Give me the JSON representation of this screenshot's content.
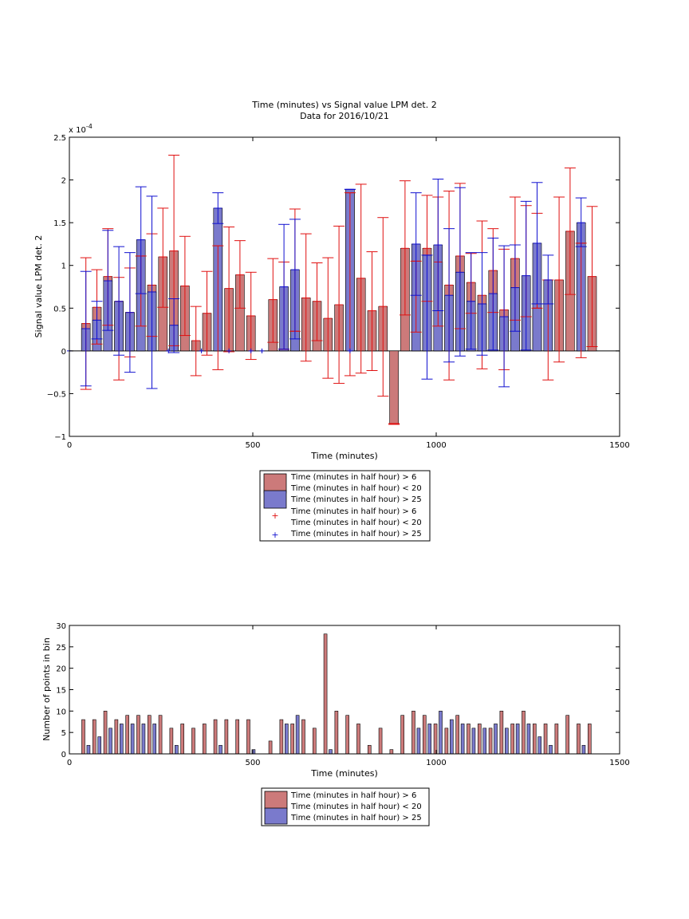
{
  "colors": {
    "red_bar": "#CC7A7A",
    "blue_bar": "#7A7ACC",
    "red_err": "#E01010",
    "blue_err": "#1010D0",
    "axis": "#000000"
  },
  "chart_data": [
    {
      "type": "bar",
      "title": "Time (minutes) vs Signal value LPM det. 2",
      "subtitle": "Data for 2016/10/21",
      "xlabel": "Time (minutes)",
      "ylabel": "Signal value LPM det. 2",
      "exponent_label": "x 10",
      "exponent_power": "-4",
      "xlim": [
        0,
        1500
      ],
      "ylim": [
        -1,
        2.5
      ],
      "xticks": [
        "0",
        "500",
        "1000",
        "1500"
      ],
      "yticks": [
        "−1",
        "−0.5",
        "0",
        "0.5",
        "1",
        "1.5",
        "2",
        "2.5"
      ],
      "legend_position": "below",
      "legend": [
        "Time (minutes in half hour) > 6",
        "Time (minutes in half hour) < 20",
        "Time (minutes in half hour) > 25",
        "Time (minutes in half hour) > 6",
        "Time (minutes in half hour) < 20",
        "Time (minutes in half hour) > 25"
      ],
      "series": [
        {
          "legend": "Time (minutes in half hour) > 6 / Time (minutes in half hour) < 20",
          "color": "red",
          "points": [
            {
              "x": 45,
              "y": 0.32,
              "lo": -0.45,
              "hi": 1.09
            },
            {
              "x": 75,
              "y": 0.51,
              "lo": 0.08,
              "hi": 0.95
            },
            {
              "x": 105,
              "y": 0.87,
              "lo": 0.3,
              "hi": 1.43
            },
            {
              "x": 135,
              "y": 0.58,
              "lo": -0.34,
              "hi": 0.86
            },
            {
              "x": 165,
              "y": 0.45,
              "lo": -0.07,
              "hi": 0.97
            },
            {
              "x": 195,
              "y": 1.11,
              "lo": 0.29,
              "hi": 1.11
            },
            {
              "x": 225,
              "y": 0.77,
              "lo": 0.17,
              "hi": 1.37
            },
            {
              "x": 255,
              "y": 1.1,
              "lo": 0.51,
              "hi": 1.67
            },
            {
              "x": 285,
              "y": 1.17,
              "lo": 0.06,
              "hi": 2.29
            },
            {
              "x": 315,
              "y": 0.76,
              "lo": 0.18,
              "hi": 1.34
            },
            {
              "x": 345,
              "y": 0.12,
              "lo": -0.29,
              "hi": 0.52
            },
            {
              "x": 375,
              "y": 0.44,
              "lo": -0.05,
              "hi": 0.93
            },
            {
              "x": 405,
              "y": 1.23,
              "lo": -0.22,
              "hi": 1.23
            },
            {
              "x": 435,
              "y": 0.73,
              "lo": -0.01,
              "hi": 1.45
            },
            {
              "x": 465,
              "y": 0.89,
              "lo": 0.5,
              "hi": 1.29
            },
            {
              "x": 495,
              "y": 0.41,
              "lo": -0.1,
              "hi": 0.92
            },
            {
              "x": 555,
              "y": 0.6,
              "lo": 0.1,
              "hi": 1.08
            },
            {
              "x": 585,
              "y": 0.02,
              "lo": 0.02,
              "hi": 1.04
            },
            {
              "x": 615,
              "y": 0.23,
              "lo": 0.23,
              "hi": 1.66
            },
            {
              "x": 645,
              "y": 0.62,
              "lo": -0.12,
              "hi": 1.37
            },
            {
              "x": 675,
              "y": 0.58,
              "lo": 0.12,
              "hi": 1.03
            },
            {
              "x": 705,
              "y": 0.38,
              "lo": -0.32,
              "hi": 1.09
            },
            {
              "x": 735,
              "y": 0.54,
              "lo": -0.38,
              "hi": 1.46
            },
            {
              "x": 765,
              "y": 1.85,
              "lo": -0.29,
              "hi": 1.85
            },
            {
              "x": 795,
              "y": 0.85,
              "lo": -0.26,
              "hi": 1.95
            },
            {
              "x": 825,
              "y": 0.47,
              "lo": -0.23,
              "hi": 1.16
            },
            {
              "x": 855,
              "y": 0.52,
              "lo": -0.53,
              "hi": 1.56
            },
            {
              "x": 885,
              "y": -0.85,
              "lo": -0.86,
              "hi": -0.85
            },
            {
              "x": 915,
              "y": 1.2,
              "lo": 0.42,
              "hi": 1.99
            },
            {
              "x": 945,
              "y": 1.05,
              "lo": 0.22,
              "hi": 1.05
            },
            {
              "x": 975,
              "y": 1.2,
              "lo": 0.58,
              "hi": 1.82
            },
            {
              "x": 1005,
              "y": 1.04,
              "lo": 0.29,
              "hi": 1.8
            },
            {
              "x": 1035,
              "y": 0.77,
              "lo": -0.34,
              "hi": 1.87
            },
            {
              "x": 1065,
              "y": 1.11,
              "lo": 0.26,
              "hi": 1.96
            },
            {
              "x": 1095,
              "y": 0.8,
              "lo": 0.44,
              "hi": 1.14
            },
            {
              "x": 1125,
              "y": 0.65,
              "lo": -0.21,
              "hi": 1.52
            },
            {
              "x": 1155,
              "y": 0.94,
              "lo": 0.45,
              "hi": 1.43
            },
            {
              "x": 1185,
              "y": 0.48,
              "lo": -0.22,
              "hi": 1.19
            },
            {
              "x": 1215,
              "y": 1.08,
              "lo": 0.36,
              "hi": 1.8
            },
            {
              "x": 1245,
              "y": 0.4,
              "lo": 0.4,
              "hi": 1.7
            },
            {
              "x": 1275,
              "y": 0.5,
              "lo": 0.5,
              "hi": 1.61
            },
            {
              "x": 1305,
              "y": 0.83,
              "lo": -0.34,
              "hi": 0.83
            },
            {
              "x": 1335,
              "y": 0.83,
              "lo": -0.13,
              "hi": 1.8
            },
            {
              "x": 1365,
              "y": 1.4,
              "lo": 0.66,
              "hi": 2.14
            },
            {
              "x": 1395,
              "y": 1.26,
              "lo": -0.08,
              "hi": 1.26
            },
            {
              "x": 1425,
              "y": 0.87,
              "lo": 0.05,
              "hi": 1.69
            }
          ]
        },
        {
          "legend": "Time (minutes in half hour) > 25",
          "color": "blue",
          "points": [
            {
              "x": 45,
              "y": 0.26,
              "lo": -0.41,
              "hi": 0.93
            },
            {
              "x": 75,
              "y": 0.36,
              "lo": 0.14,
              "hi": 0.58
            },
            {
              "x": 105,
              "y": 0.82,
              "lo": 0.24,
              "hi": 1.41
            },
            {
              "x": 135,
              "y": 0.58,
              "lo": -0.05,
              "hi": 1.22
            },
            {
              "x": 165,
              "y": 0.45,
              "lo": -0.25,
              "hi": 1.15
            },
            {
              "x": 195,
              "y": 1.3,
              "lo": 0.67,
              "hi": 1.92
            },
            {
              "x": 225,
              "y": 0.69,
              "lo": -0.44,
              "hi": 1.81
            },
            {
              "x": 285,
              "y": 0.3,
              "lo": -0.02,
              "hi": 0.61
            },
            {
              "x": 405,
              "y": 1.67,
              "lo": 1.49,
              "hi": 1.85
            },
            {
              "x": 585,
              "y": 0.75,
              "lo": 0.02,
              "hi": 1.48
            },
            {
              "x": 615,
              "y": 0.95,
              "lo": 0.14,
              "hi": 1.54
            },
            {
              "x": 765,
              "y": 1.89,
              "lo": 1.89,
              "hi": 1.89
            },
            {
              "x": 945,
              "y": 1.25,
              "lo": 0.65,
              "hi": 1.85
            },
            {
              "x": 975,
              "y": 1.12,
              "lo": -0.33,
              "hi": 1.12
            },
            {
              "x": 1005,
              "y": 1.24,
              "lo": 0.47,
              "hi": 2.01
            },
            {
              "x": 1035,
              "y": 0.65,
              "lo": -0.13,
              "hi": 1.43
            },
            {
              "x": 1065,
              "y": 0.92,
              "lo": -0.06,
              "hi": 1.91
            },
            {
              "x": 1095,
              "y": 0.58,
              "lo": 0.02,
              "hi": 1.15
            },
            {
              "x": 1125,
              "y": 0.55,
              "lo": -0.05,
              "hi": 1.15
            },
            {
              "x": 1155,
              "y": 0.67,
              "lo": 0.01,
              "hi": 1.32
            },
            {
              "x": 1185,
              "y": 0.4,
              "lo": -0.42,
              "hi": 1.23
            },
            {
              "x": 1215,
              "y": 0.74,
              "lo": 0.23,
              "hi": 1.24
            },
            {
              "x": 1245,
              "y": 0.88,
              "lo": 0.01,
              "hi": 1.75
            },
            {
              "x": 1275,
              "y": 1.26,
              "lo": 0.55,
              "hi": 1.97
            },
            {
              "x": 1305,
              "y": 0.83,
              "lo": 0.55,
              "hi": 1.12
            },
            {
              "x": 1395,
              "y": 1.5,
              "lo": 1.22,
              "hi": 1.79
            }
          ]
        }
      ],
      "blue_markers_x": [
        0,
        270,
        360,
        435,
        495,
        525,
        765
      ]
    },
    {
      "type": "bar",
      "xlabel": "Time (minutes)",
      "ylabel": "Number of points in bin",
      "xlim": [
        0,
        1500
      ],
      "ylim": [
        0,
        30
      ],
      "xticks": [
        "0",
        "500",
        "1000",
        "1500"
      ],
      "yticks": [
        "0",
        "5",
        "10",
        "15",
        "20",
        "25",
        "30"
      ],
      "legend_position": "below",
      "legend": [
        "Time (minutes in half hour) > 6",
        "Time (minutes in half hour) < 20",
        "Time (minutes in half hour) > 25"
      ],
      "series": [
        {
          "legend": "Time (minutes in half hour) > 6 / Time (minutes in half hour) < 20",
          "color": "red",
          "points": [
            {
              "x": 38,
              "y": 8
            },
            {
              "x": 68,
              "y": 8
            },
            {
              "x": 98,
              "y": 10
            },
            {
              "x": 128,
              "y": 8
            },
            {
              "x": 158,
              "y": 9
            },
            {
              "x": 188,
              "y": 9
            },
            {
              "x": 218,
              "y": 9
            },
            {
              "x": 248,
              "y": 9
            },
            {
              "x": 278,
              "y": 6
            },
            {
              "x": 308,
              "y": 7
            },
            {
              "x": 338,
              "y": 6
            },
            {
              "x": 368,
              "y": 7
            },
            {
              "x": 398,
              "y": 8
            },
            {
              "x": 428,
              "y": 8
            },
            {
              "x": 458,
              "y": 8
            },
            {
              "x": 488,
              "y": 8
            },
            {
              "x": 548,
              "y": 3
            },
            {
              "x": 578,
              "y": 8
            },
            {
              "x": 608,
              "y": 7
            },
            {
              "x": 638,
              "y": 8
            },
            {
              "x": 668,
              "y": 6
            },
            {
              "x": 698,
              "y": 28
            },
            {
              "x": 728,
              "y": 10
            },
            {
              "x": 758,
              "y": 9
            },
            {
              "x": 788,
              "y": 7
            },
            {
              "x": 818,
              "y": 2
            },
            {
              "x": 848,
              "y": 6
            },
            {
              "x": 878,
              "y": 1
            },
            {
              "x": 908,
              "y": 9
            },
            {
              "x": 938,
              "y": 10
            },
            {
              "x": 968,
              "y": 9
            },
            {
              "x": 998,
              "y": 7
            },
            {
              "x": 1028,
              "y": 6
            },
            {
              "x": 1058,
              "y": 9
            },
            {
              "x": 1088,
              "y": 7
            },
            {
              "x": 1118,
              "y": 7
            },
            {
              "x": 1148,
              "y": 6
            },
            {
              "x": 1178,
              "y": 10
            },
            {
              "x": 1208,
              "y": 7
            },
            {
              "x": 1238,
              "y": 10
            },
            {
              "x": 1268,
              "y": 7
            },
            {
              "x": 1298,
              "y": 7
            },
            {
              "x": 1328,
              "y": 7
            },
            {
              "x": 1358,
              "y": 9
            },
            {
              "x": 1388,
              "y": 7
            },
            {
              "x": 1418,
              "y": 7
            }
          ]
        },
        {
          "legend": "Time (minutes in half hour) > 25",
          "color": "blue",
          "points": [
            {
              "x": 52,
              "y": 2
            },
            {
              "x": 82,
              "y": 4
            },
            {
              "x": 112,
              "y": 6
            },
            {
              "x": 142,
              "y": 7
            },
            {
              "x": 172,
              "y": 7
            },
            {
              "x": 202,
              "y": 7
            },
            {
              "x": 232,
              "y": 7
            },
            {
              "x": 292,
              "y": 2
            },
            {
              "x": 412,
              "y": 2
            },
            {
              "x": 502,
              "y": 1
            },
            {
              "x": 592,
              "y": 7
            },
            {
              "x": 622,
              "y": 9
            },
            {
              "x": 712,
              "y": 1
            },
            {
              "x": 952,
              "y": 6
            },
            {
              "x": 982,
              "y": 7
            },
            {
              "x": 1012,
              "y": 10
            },
            {
              "x": 1042,
              "y": 8
            },
            {
              "x": 1072,
              "y": 7
            },
            {
              "x": 1102,
              "y": 6
            },
            {
              "x": 1132,
              "y": 6
            },
            {
              "x": 1162,
              "y": 7
            },
            {
              "x": 1192,
              "y": 6
            },
            {
              "x": 1222,
              "y": 7
            },
            {
              "x": 1252,
              "y": 7
            },
            {
              "x": 1282,
              "y": 4
            },
            {
              "x": 1312,
              "y": 2
            },
            {
              "x": 1402,
              "y": 2
            }
          ]
        }
      ]
    }
  ]
}
